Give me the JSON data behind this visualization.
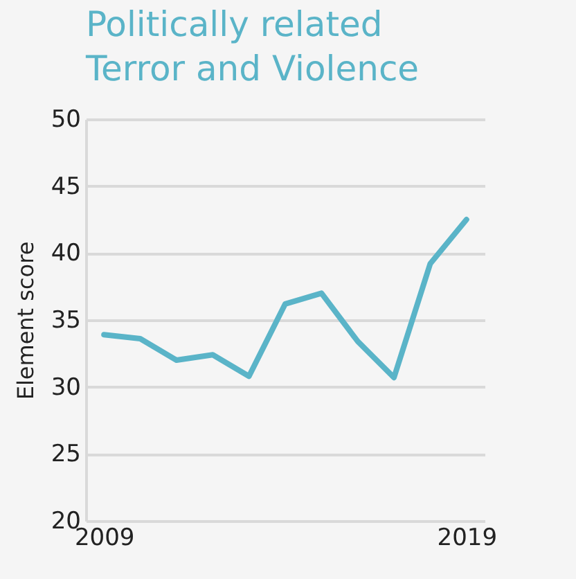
{
  "chart_data": {
    "type": "line",
    "title": "Politically related Terror and Violence",
    "ylabel": "Element score",
    "x": [
      2009,
      2010,
      2011,
      2012,
      2013,
      2014,
      2015,
      2016,
      2017,
      2018,
      2019
    ],
    "series": [
      {
        "color": "#5ab4c8",
        "values": [
          33.9,
          33.6,
          32.0,
          32.4,
          30.8,
          36.2,
          37.0,
          33.4,
          30.7,
          39.2,
          42.5
        ]
      }
    ],
    "xlim": [
      2008.5,
      2019.5
    ],
    "xticks": [
      2009,
      2019
    ],
    "ylim": [
      20,
      50
    ],
    "yticks": [
      20,
      25,
      30,
      35,
      40,
      45,
      50
    ],
    "grid": "y",
    "marker": "none",
    "line_style": "solid"
  }
}
